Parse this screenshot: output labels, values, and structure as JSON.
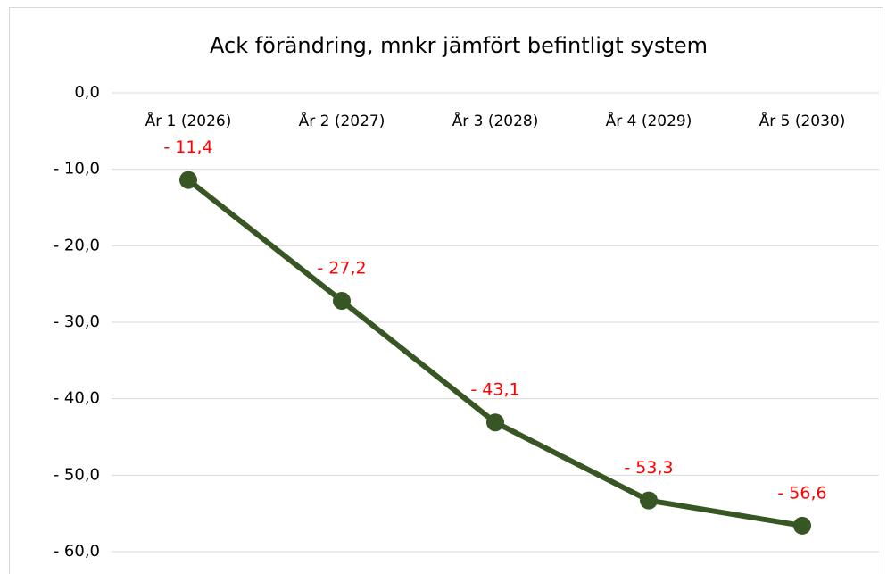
{
  "chart_data": {
    "type": "line",
    "title": "Ack förändring, mnkr jämfört befintligt system",
    "categories": [
      "År 1 (2026)",
      "År 2 (2027)",
      "År 3 (2028)",
      "År 4 (2029)",
      "År 5 (2030)"
    ],
    "values": [
      -11.4,
      -27.2,
      -43.1,
      -53.3,
      -56.6
    ],
    "value_labels": [
      "- 11,4",
      "- 27,2",
      "- 43,1",
      "- 53,3",
      "- 56,6"
    ],
    "color": "#375623",
    "label_color": "#ff0000",
    "ylim": [
      -60,
      0
    ],
    "yticks": [
      {
        "value": 0,
        "label": "0,0"
      },
      {
        "value": -10,
        "label": "- 10,0"
      },
      {
        "value": -20,
        "label": "- 20,0"
      },
      {
        "value": -30,
        "label": "- 30,0"
      },
      {
        "value": -40,
        "label": "- 40,0"
      },
      {
        "value": -50,
        "label": "- 50,0"
      },
      {
        "value": -60,
        "label": "- 60,0"
      }
    ],
    "grid": true
  }
}
